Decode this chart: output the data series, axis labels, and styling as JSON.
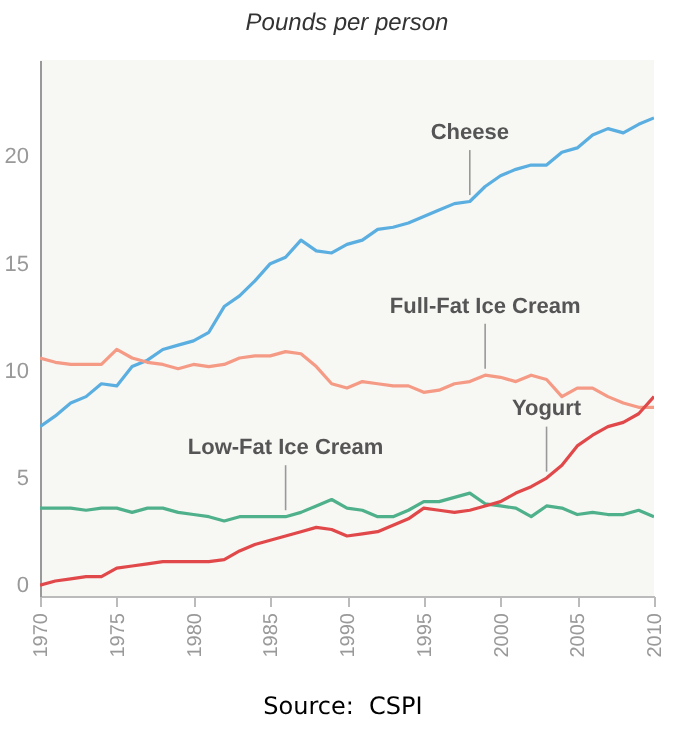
{
  "chart_data": {
    "type": "line",
    "title": "Pounds per person",
    "x": [
      1970,
      1971,
      1972,
      1973,
      1974,
      1975,
      1976,
      1977,
      1978,
      1979,
      1980,
      1981,
      1982,
      1983,
      1984,
      1985,
      1986,
      1987,
      1988,
      1989,
      1990,
      1991,
      1992,
      1993,
      1994,
      1995,
      1996,
      1997,
      1998,
      1999,
      2000,
      2001,
      2002,
      2003,
      2004,
      2005,
      2006,
      2007,
      2008,
      2009,
      2010
    ],
    "series": [
      {
        "color": "#5aaee0",
        "values": [
          7.4,
          7.9,
          8.5,
          8.8,
          9.4,
          9.3,
          10.2,
          10.5,
          11.0,
          11.2,
          11.4,
          11.8,
          13.0,
          13.5,
          14.2,
          15.0,
          15.3,
          16.1,
          15.6,
          15.5,
          15.9,
          16.1,
          16.6,
          16.7,
          16.9,
          17.2,
          17.5,
          17.8,
          17.9,
          18.6,
          19.1,
          19.4,
          19.6,
          19.6,
          20.2,
          20.4,
          21.0,
          21.3,
          21.1,
          21.5,
          21.8
        ]
      },
      {
        "color": "#f59a85",
        "values": [
          10.6,
          10.4,
          10.3,
          10.3,
          10.3,
          11.0,
          10.6,
          10.4,
          10.3,
          10.1,
          10.3,
          10.2,
          10.3,
          10.6,
          10.7,
          10.7,
          10.9,
          10.8,
          10.2,
          9.4,
          9.2,
          9.5,
          9.4,
          9.3,
          9.3,
          9.0,
          9.1,
          9.4,
          9.5,
          9.8,
          9.7,
          9.5,
          9.8,
          9.6,
          8.8,
          9.2,
          9.2,
          8.8,
          8.5,
          8.3,
          8.3
        ]
      },
      {
        "color": "#4fb08c",
        "values": [
          3.6,
          3.6,
          3.6,
          3.5,
          3.6,
          3.6,
          3.4,
          3.6,
          3.6,
          3.4,
          3.3,
          3.2,
          3.0,
          3.2,
          3.2,
          3.2,
          3.2,
          3.4,
          3.7,
          4.0,
          3.6,
          3.5,
          3.2,
          3.2,
          3.5,
          3.9,
          3.9,
          4.1,
          4.3,
          3.8,
          3.7,
          3.6,
          3.2,
          3.7,
          3.6,
          3.3,
          3.4,
          3.3,
          3.3,
          3.5,
          3.2
        ]
      },
      {
        "color": "#e0484a",
        "values": [
          0.0,
          0.2,
          0.3,
          0.4,
          0.4,
          0.8,
          0.9,
          1.0,
          1.1,
          1.1,
          1.1,
          1.1,
          1.2,
          1.6,
          1.9,
          2.1,
          2.3,
          2.5,
          2.7,
          2.6,
          2.3,
          2.4,
          2.5,
          2.8,
          3.1,
          3.6,
          3.5,
          3.4,
          3.5,
          3.7,
          3.9,
          4.3,
          4.6,
          5.0,
          5.6,
          6.5,
          7.0,
          7.4,
          7.6,
          8.0,
          8.8
        ]
      }
    ],
    "xlim": [
      1970,
      2010
    ],
    "xticks": [
      1970,
      1975,
      1980,
      1985,
      1990,
      1995,
      2000,
      2005,
      2010
    ],
    "ylim": [
      -0.5,
      24.5
    ],
    "yticks": [
      0,
      5,
      10,
      15,
      20
    ],
    "grid": false,
    "legend": false,
    "line_style": "solid",
    "annotations": [
      {
        "text": "Cheese",
        "x": 1998,
        "y": 17.9
      },
      {
        "text": "Full-Fat Ice Cream",
        "x": 1999,
        "y": 9.8
      },
      {
        "text": "Low-Fat Ice Cream",
        "x": 1986,
        "y": 3.2
      },
      {
        "text": "Yogurt",
        "x": 2003,
        "y": 5.0
      },
      "Source:  CSPI"
    ]
  }
}
